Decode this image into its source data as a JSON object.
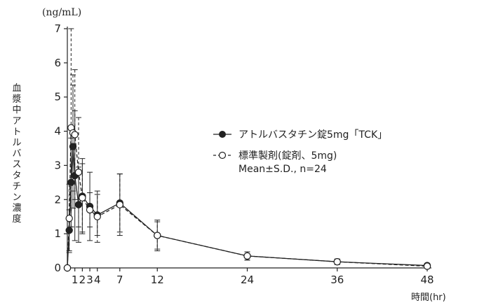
{
  "chart_data": {
    "type": "line",
    "ylabel": "血漿中アトルバスタチン濃度",
    "yunit": "(ng/mL)",
    "xlabel": "時間(hr)",
    "ylim": [
      0,
      7
    ],
    "yticks": [
      0,
      1,
      2,
      3,
      4,
      5,
      6,
      7
    ],
    "xlim": [
      0,
      48
    ],
    "xticks": [
      1,
      2,
      3,
      4,
      7,
      12,
      24,
      36,
      48
    ],
    "xtick_labels": [
      "1",
      "2",
      "3",
      "4",
      "7",
      "12",
      "24",
      "36",
      "48"
    ],
    "legend_position": "right",
    "stat_note": "Mean±S.D., n=24",
    "series": [
      {
        "name": "アトルバスタチン錠5mg「TCK」",
        "marker": "filled-circle",
        "line": "solid",
        "x": [
          0,
          0.25,
          0.5,
          0.75,
          1,
          1.5,
          2,
          3,
          4,
          7,
          12,
          24,
          36,
          48
        ],
        "y": [
          0,
          1.1,
          2.5,
          3.55,
          2.7,
          1.85,
          2.1,
          1.8,
          1.55,
          1.9,
          0.95,
          0.35,
          0.18,
          0.07
        ],
        "sd": [
          0,
          0.6,
          1.3,
          1.8,
          1.9,
          1.1,
          1.1,
          1.0,
          0.6,
          0.85,
          0.4,
          0.12,
          0.08,
          0.06
        ]
      },
      {
        "name": "標準製剤(錠剤、5mg)",
        "marker": "open-circle",
        "line": "dashed",
        "x": [
          0,
          0.25,
          0.5,
          0.75,
          1,
          1.5,
          2,
          3,
          4,
          7,
          12,
          24,
          36,
          48
        ],
        "y": [
          0,
          1.45,
          4.1,
          3.95,
          3.9,
          2.8,
          2.05,
          1.7,
          1.5,
          1.85,
          0.95,
          0.35,
          0.18,
          0.05
        ],
        "sd": [
          0,
          1.0,
          2.9,
          1.7,
          1.9,
          1.6,
          1.0,
          0.5,
          0.75,
          0.9,
          0.45,
          0.12,
          0.08,
          0.05
        ]
      }
    ]
  }
}
